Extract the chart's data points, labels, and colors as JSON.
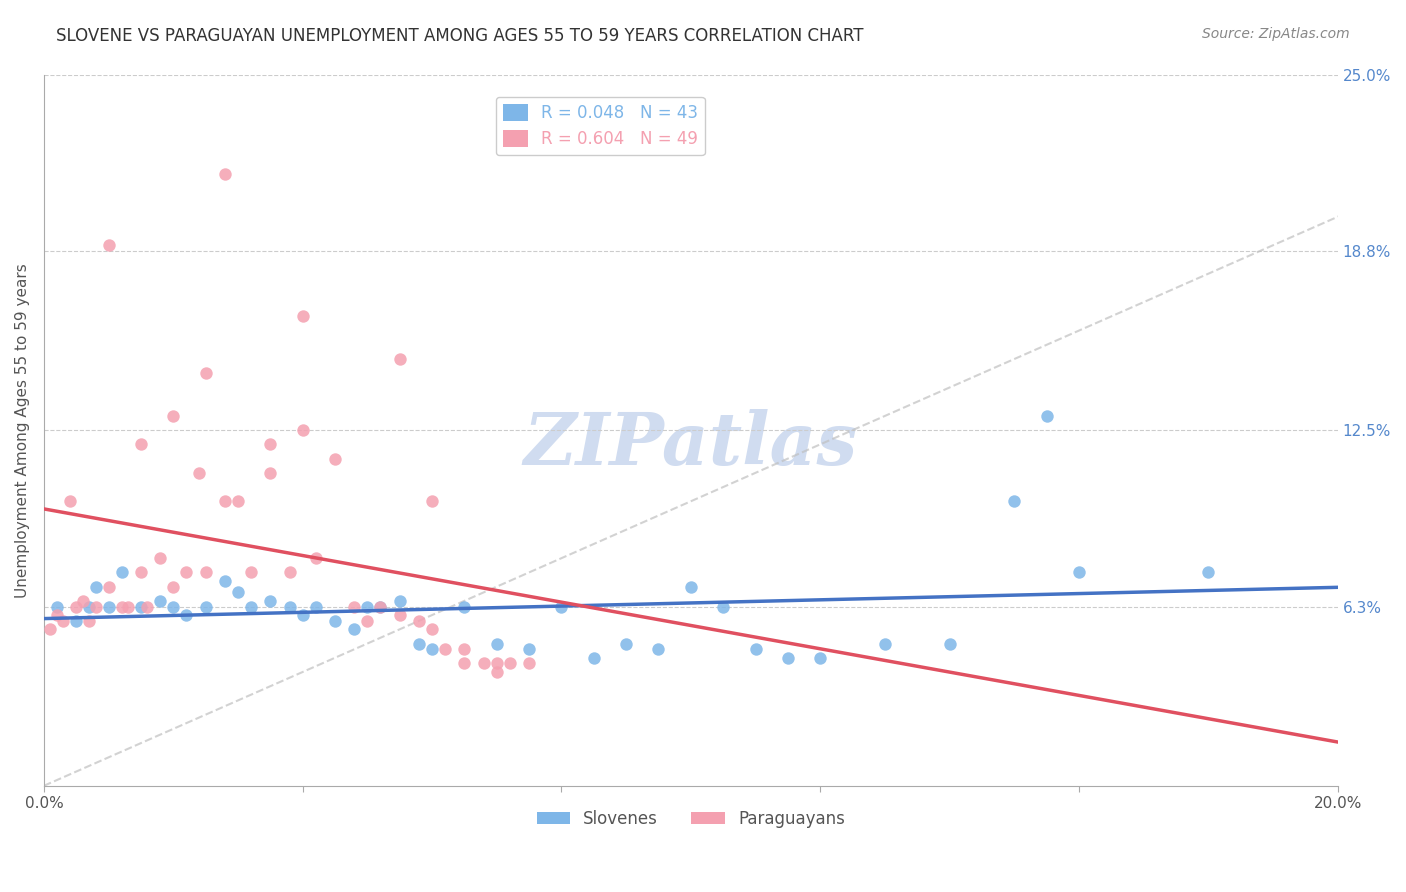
{
  "title": "SLOVENE VS PARAGUAYAN UNEMPLOYMENT AMONG AGES 55 TO 59 YEARS CORRELATION CHART",
  "source": "Source: ZipAtlas.com",
  "ylabel": "Unemployment Among Ages 55 to 59 years",
  "xlim": [
    0.0,
    0.2
  ],
  "ylim": [
    0.0,
    0.25
  ],
  "ytick_right_labels": [
    "25.0%",
    "18.8%",
    "12.5%",
    "6.3%"
  ],
  "ytick_right_values": [
    0.25,
    0.188,
    0.125,
    0.063
  ],
  "legend_entries": [
    {
      "label": "R = 0.048   N = 43",
      "color": "#7EB6E8"
    },
    {
      "label": "R = 0.604   N = 49",
      "color": "#F4A0B0"
    }
  ],
  "bottom_legend": [
    {
      "label": "Slovenes",
      "color": "#7EB6E8"
    },
    {
      "label": "Paraguayans",
      "color": "#F4A0B0"
    }
  ],
  "slovene_color": "#7EB6E8",
  "paraguayan_color": "#F4A0B0",
  "slovene_line_color": "#4472C4",
  "paraguayan_line_color": "#E05060",
  "diagonal_line_color": "#C0C0C0",
  "watermark_text": "ZIPatlas",
  "watermark_color": "#D0DCF0",
  "slovene_scatter": [
    [
      0.002,
      0.063
    ],
    [
      0.005,
      0.058
    ],
    [
      0.007,
      0.063
    ],
    [
      0.008,
      0.07
    ],
    [
      0.01,
      0.063
    ],
    [
      0.012,
      0.075
    ],
    [
      0.015,
      0.063
    ],
    [
      0.018,
      0.065
    ],
    [
      0.02,
      0.063
    ],
    [
      0.022,
      0.06
    ],
    [
      0.025,
      0.063
    ],
    [
      0.028,
      0.072
    ],
    [
      0.03,
      0.068
    ],
    [
      0.032,
      0.063
    ],
    [
      0.035,
      0.065
    ],
    [
      0.038,
      0.063
    ],
    [
      0.04,
      0.06
    ],
    [
      0.042,
      0.063
    ],
    [
      0.045,
      0.058
    ],
    [
      0.048,
      0.055
    ],
    [
      0.05,
      0.063
    ],
    [
      0.052,
      0.063
    ],
    [
      0.055,
      0.065
    ],
    [
      0.058,
      0.05
    ],
    [
      0.06,
      0.048
    ],
    [
      0.065,
      0.063
    ],
    [
      0.07,
      0.05
    ],
    [
      0.075,
      0.048
    ],
    [
      0.08,
      0.063
    ],
    [
      0.085,
      0.045
    ],
    [
      0.09,
      0.05
    ],
    [
      0.095,
      0.048
    ],
    [
      0.1,
      0.07
    ],
    [
      0.105,
      0.063
    ],
    [
      0.11,
      0.048
    ],
    [
      0.115,
      0.045
    ],
    [
      0.12,
      0.045
    ],
    [
      0.13,
      0.05
    ],
    [
      0.14,
      0.05
    ],
    [
      0.15,
      0.1
    ],
    [
      0.155,
      0.13
    ],
    [
      0.16,
      0.075
    ],
    [
      0.18,
      0.075
    ]
  ],
  "paraguayan_scatter": [
    [
      0.001,
      0.055
    ],
    [
      0.002,
      0.06
    ],
    [
      0.003,
      0.058
    ],
    [
      0.004,
      0.1
    ],
    [
      0.005,
      0.063
    ],
    [
      0.006,
      0.065
    ],
    [
      0.007,
      0.058
    ],
    [
      0.008,
      0.063
    ],
    [
      0.01,
      0.07
    ],
    [
      0.012,
      0.063
    ],
    [
      0.013,
      0.063
    ],
    [
      0.015,
      0.075
    ],
    [
      0.016,
      0.063
    ],
    [
      0.018,
      0.08
    ],
    [
      0.02,
      0.07
    ],
    [
      0.022,
      0.075
    ],
    [
      0.024,
      0.11
    ],
    [
      0.025,
      0.075
    ],
    [
      0.028,
      0.1
    ],
    [
      0.03,
      0.1
    ],
    [
      0.032,
      0.075
    ],
    [
      0.035,
      0.12
    ],
    [
      0.038,
      0.075
    ],
    [
      0.04,
      0.125
    ],
    [
      0.042,
      0.08
    ],
    [
      0.045,
      0.115
    ],
    [
      0.048,
      0.063
    ],
    [
      0.05,
      0.058
    ],
    [
      0.052,
      0.063
    ],
    [
      0.055,
      0.06
    ],
    [
      0.058,
      0.058
    ],
    [
      0.06,
      0.055
    ],
    [
      0.062,
      0.048
    ],
    [
      0.065,
      0.048
    ],
    [
      0.068,
      0.043
    ],
    [
      0.07,
      0.043
    ],
    [
      0.072,
      0.043
    ],
    [
      0.075,
      0.043
    ],
    [
      0.028,
      0.215
    ],
    [
      0.01,
      0.19
    ],
    [
      0.04,
      0.165
    ],
    [
      0.055,
      0.15
    ],
    [
      0.025,
      0.145
    ],
    [
      0.02,
      0.13
    ],
    [
      0.015,
      0.12
    ],
    [
      0.035,
      0.11
    ],
    [
      0.06,
      0.1
    ],
    [
      0.065,
      0.043
    ],
    [
      0.07,
      0.04
    ]
  ]
}
